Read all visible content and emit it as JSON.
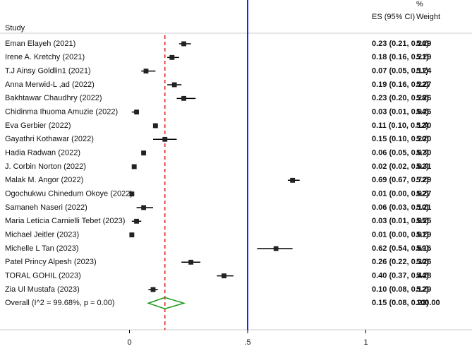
{
  "chart_data": {
    "type": "forest",
    "headers": {
      "study": "Study",
      "es": "ES (95% CI)",
      "weight_top": "%",
      "weight": "Weight"
    },
    "categories": [
      "Eman Elayeh (2021)",
      "Irene A. Kretchy (2021)",
      "T.J Ainsy Goldlin1 (2021)",
      "Anna Merwid-L ,ad (2022)",
      "Bakhtawar Chaudhry (2022)",
      "Chidinma Ihuoma Amuzie (2022)",
      "Eva Gerbier (2022)",
      "Gayathri Kothawar (2022)",
      "Hadia Radwan (2022)",
      "J. Corbin Norton (2022)",
      "Malak M. Angor (2022)",
      "Ogochukwu Chinedum Okoye (2022)",
      "Samaneh Naseri (2022)",
      "Maria Letícia Carnielli Tebet (2023)",
      "Michael Jeitler (2023)",
      "Michelle L Tan (2023)",
      "Patel Princy Alpesh (2023)",
      "TORAL GOHIL (2023)",
      "Zia Ul Mustafa (2023)"
    ],
    "values": [
      0.23,
      0.18,
      0.07,
      0.19,
      0.23,
      0.03,
      0.11,
      0.15,
      0.06,
      0.02,
      0.69,
      0.01,
      0.06,
      0.03,
      0.01,
      0.62,
      0.26,
      0.4,
      0.1
    ],
    "lo": [
      0.21,
      0.16,
      0.05,
      0.16,
      0.2,
      0.01,
      0.1,
      0.1,
      0.05,
      0.02,
      0.67,
      0.0,
      0.03,
      0.01,
      0.0,
      0.54,
      0.22,
      0.37,
      0.08
    ],
    "hi": [
      0.26,
      0.21,
      0.11,
      0.22,
      0.28,
      0.04,
      0.12,
      0.2,
      0.07,
      0.02,
      0.72,
      0.02,
      0.1,
      0.05,
      0.01,
      0.69,
      0.3,
      0.44,
      0.12
    ],
    "value_labels": [
      "0.23 (0.21, 0.26)",
      "0.18 (0.16, 0.21)",
      "0.07 (0.05, 0.11)",
      "0.19 (0.16, 0.22)",
      "0.23 (0.20, 0.28)",
      "0.03 (0.01, 0.04)",
      "0.11 (0.10, 0.12)",
      "0.15 (0.10, 0.20)",
      "0.06 (0.05, 0.07)",
      "0.02 (0.02, 0.02)",
      "0.69 (0.67, 0.72)",
      "0.01 (0.00, 0.02)",
      "0.06 (0.03, 0.10)",
      "0.03 (0.01, 0.05)",
      "0.01 (0.00, 0.01)",
      "0.62 (0.54, 0.69)",
      "0.26 (0.22, 0.30)",
      "0.40 (0.37, 0.44)",
      "0.10 (0.08, 0.12)"
    ],
    "weights": [
      5.29,
      5.29,
      5.24,
      5.27,
      5.26,
      5.26,
      5.3,
      5.2,
      5.3,
      5.31,
      5.29,
      5.27,
      5.21,
      5.25,
      5.29,
      5.16,
      5.26,
      5.28,
      5.29
    ],
    "weight_labels": [
      "5.29",
      "5.29",
      "5.24",
      "5.27",
      "5.26",
      "5.26",
      "5.30",
      "5.20",
      "5.30",
      "5.31",
      "5.29",
      "5.27",
      "5.21",
      "5.25",
      "5.29",
      "5.16",
      "5.26",
      "5.28",
      "5.29"
    ],
    "overall": {
      "label": "Overall  (I^2 = 99.68%, p = 0.00)",
      "value": 0.15,
      "lo": 0.08,
      "hi": 0.23,
      "value_label": "0.15 (0.08, 0.23)",
      "weight": 100,
      "weight_label": "100.00",
      "color": "#1a9a1a",
      "line_color": "#e02020"
    },
    "reference_line": 0.5,
    "reference_color": "#2020ff",
    "xlim": [
      -0.1,
      1.1
    ],
    "xticks": [
      0,
      {
        "value": 0.5,
        "label": ".5"
      },
      1
    ]
  }
}
